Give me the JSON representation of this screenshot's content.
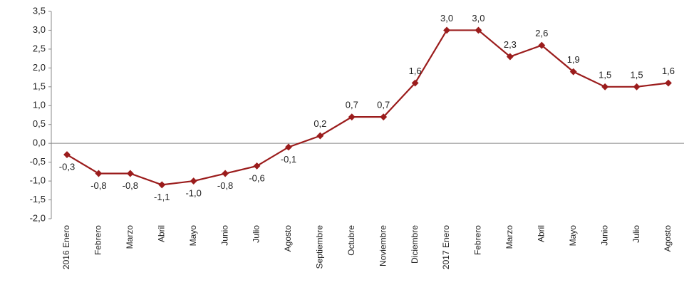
{
  "chart_data": {
    "type": "line",
    "categories": [
      "2016 Enero",
      "Febrero",
      "Marzo",
      "Abril",
      "Mayo",
      "Junio",
      "Julio",
      "Agosto",
      "Septiembre",
      "Octubre",
      "Noviembre",
      "Diciembre",
      "2017 Enero",
      "Febrero",
      "Marzo",
      "Abril",
      "Mayo",
      "Junio",
      "Julio",
      "Agosto"
    ],
    "series": [
      {
        "color": "#9b1c1c",
        "values": [
          -0.3,
          -0.8,
          -0.8,
          -1.1,
          -1.0,
          -0.8,
          -0.6,
          -0.1,
          0.2,
          0.7,
          0.7,
          1.6,
          3.0,
          3.0,
          2.3,
          2.6,
          1.9,
          1.5,
          1.5,
          1.6
        ],
        "value_labels": [
          "-0,3",
          "-0,8",
          "-0,8",
          "-1,1",
          "-1,0",
          "-0,8",
          "-0,6",
          "-0,1",
          "0,2",
          "0,7",
          "0,7",
          "1,6",
          "3,0",
          "3,0",
          "2,3",
          "2,6",
          "1,9",
          "1,5",
          "1,5",
          "1,6"
        ]
      }
    ],
    "ylim": [
      -2.0,
      3.5
    ],
    "yticks": [
      {
        "value": -2.0,
        "label": "-2,0"
      },
      {
        "value": -1.5,
        "label": "-1,5"
      },
      {
        "value": -1.0,
        "label": "-1,0"
      },
      {
        "value": -0.5,
        "label": "-0,5"
      },
      {
        "value": 0.0,
        "label": "0,0"
      },
      {
        "value": 0.5,
        "label": "0,5"
      },
      {
        "value": 1.0,
        "label": "1,0"
      },
      {
        "value": 1.5,
        "label": "1,5"
      },
      {
        "value": 2.0,
        "label": "2,0"
      },
      {
        "value": 2.5,
        "label": "2,5"
      },
      {
        "value": 3.0,
        "label": "3,0"
      },
      {
        "value": 3.5,
        "label": "3,5"
      }
    ]
  }
}
